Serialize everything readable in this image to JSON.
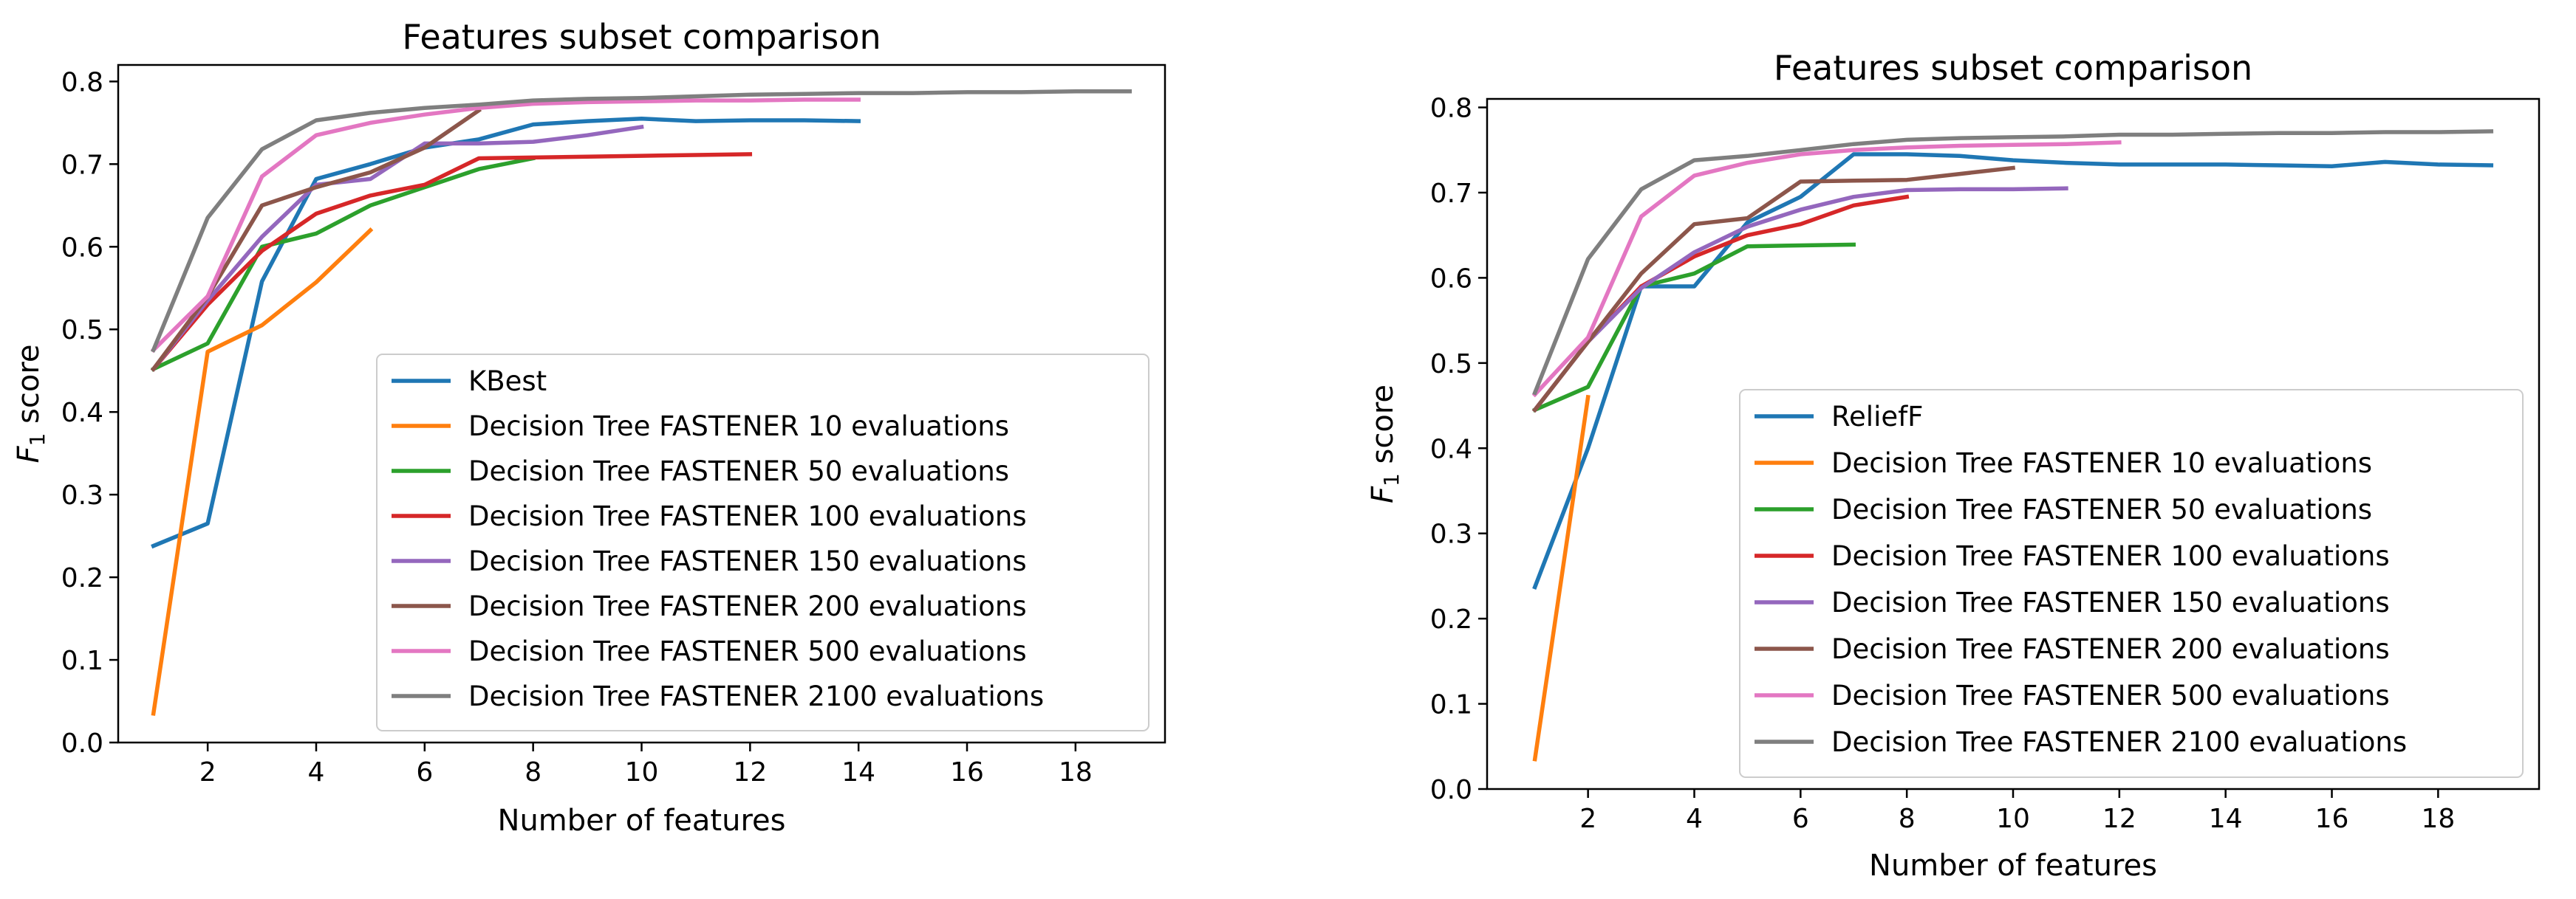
{
  "chart_data": [
    {
      "type": "line",
      "title": "Features subset comparison",
      "xlabel": "Number of features",
      "ylabel_main": "F",
      "ylabel_sub": "1",
      "ylabel_suffix": " score",
      "xlim": [
        0.35,
        19.65
      ],
      "ylim": [
        0.0,
        0.82
      ],
      "xticks": [
        2,
        4,
        6,
        8,
        10,
        12,
        14,
        16,
        18
      ],
      "yticks": [
        0.0,
        0.1,
        0.2,
        0.3,
        0.4,
        0.5,
        0.6,
        0.7,
        0.8
      ],
      "ytick_labels": [
        "0.0",
        "0.1",
        "0.2",
        "0.3",
        "0.4",
        "0.5",
        "0.6",
        "0.7",
        "0.8"
      ],
      "legend_position": "lower-right",
      "series": [
        {
          "name": "KBest",
          "color": "#1f77b4",
          "x": [
            1,
            2,
            3,
            4,
            5,
            6,
            7,
            8,
            9,
            10,
            11,
            12,
            13,
            14
          ],
          "y": [
            0.238,
            0.265,
            0.558,
            0.682,
            0.7,
            0.72,
            0.73,
            0.748,
            0.752,
            0.755,
            0.752,
            0.753,
            0.753,
            0.752
          ]
        },
        {
          "name": "Decision Tree FASTENER 10 evaluations",
          "color": "#ff7f0e",
          "x": [
            1,
            2,
            3,
            4,
            5
          ],
          "y": [
            0.035,
            0.473,
            0.505,
            0.557,
            0.62
          ]
        },
        {
          "name": "Decision Tree FASTENER 50 evaluations",
          "color": "#2ca02c",
          "x": [
            1,
            2,
            3,
            4,
            5,
            6,
            7,
            8
          ],
          "y": [
            0.452,
            0.483,
            0.6,
            0.616,
            0.65,
            0.672,
            0.694,
            0.707
          ]
        },
        {
          "name": "Decision Tree FASTENER 100 evaluations",
          "color": "#d62728",
          "x": [
            1,
            2,
            3,
            4,
            5,
            6,
            7,
            8,
            9,
            10,
            11,
            12
          ],
          "y": [
            0.452,
            0.53,
            0.595,
            0.64,
            0.662,
            0.675,
            0.707,
            0.708,
            0.709,
            0.71,
            0.711,
            0.712
          ]
        },
        {
          "name": "Decision Tree FASTENER 150 evaluations",
          "color": "#9467bd",
          "x": [
            1,
            2,
            3,
            4,
            5,
            6,
            7,
            8,
            9,
            10
          ],
          "y": [
            0.452,
            0.535,
            0.612,
            0.675,
            0.682,
            0.725,
            0.725,
            0.727,
            0.735,
            0.745
          ]
        },
        {
          "name": "Decision Tree FASTENER 200 evaluations",
          "color": "#8c564b",
          "x": [
            1,
            2,
            3,
            4,
            5,
            6,
            7
          ],
          "y": [
            0.452,
            0.54,
            0.65,
            0.672,
            0.69,
            0.72,
            0.765
          ]
        },
        {
          "name": "Decision Tree FASTENER 500 evaluations",
          "color": "#e377c2",
          "x": [
            1,
            2,
            3,
            4,
            5,
            6,
            7,
            8,
            9,
            10,
            11,
            12,
            13,
            14
          ],
          "y": [
            0.475,
            0.54,
            0.685,
            0.735,
            0.75,
            0.76,
            0.768,
            0.773,
            0.775,
            0.776,
            0.777,
            0.777,
            0.778,
            0.778
          ]
        },
        {
          "name": "Decision Tree FASTENER 2100 evaluations",
          "color": "#7f7f7f",
          "x": [
            1,
            2,
            3,
            4,
            5,
            6,
            7,
            8,
            9,
            10,
            11,
            12,
            13,
            14,
            15,
            16,
            17,
            18,
            19
          ],
          "y": [
            0.475,
            0.635,
            0.718,
            0.753,
            0.762,
            0.768,
            0.772,
            0.777,
            0.779,
            0.78,
            0.782,
            0.784,
            0.785,
            0.786,
            0.786,
            0.787,
            0.787,
            0.788,
            0.788
          ]
        }
      ]
    },
    {
      "type": "line",
      "title": "Features subset comparison",
      "xlabel": "Number of features",
      "ylabel_main": "F",
      "ylabel_sub": "1",
      "ylabel_suffix": " score",
      "xlim": [
        0.1,
        19.9
      ],
      "ylim": [
        0.0,
        0.81
      ],
      "xticks": [
        2,
        4,
        6,
        8,
        10,
        12,
        14,
        16,
        18
      ],
      "yticks": [
        0.0,
        0.1,
        0.2,
        0.3,
        0.4,
        0.5,
        0.6,
        0.7,
        0.8
      ],
      "ytick_labels": [
        "0.0",
        "0.1",
        "0.2",
        "0.3",
        "0.4",
        "0.5",
        "0.6",
        "0.7",
        "0.8"
      ],
      "legend_position": "lower-right",
      "series": [
        {
          "name": "ReliefF",
          "color": "#1f77b4",
          "x": [
            1,
            2,
            3,
            4,
            5,
            6,
            7,
            8,
            9,
            10,
            11,
            12,
            13,
            14,
            15,
            16,
            17,
            18,
            19
          ],
          "y": [
            0.237,
            0.4,
            0.59,
            0.59,
            0.665,
            0.695,
            0.745,
            0.745,
            0.743,
            0.738,
            0.735,
            0.733,
            0.733,
            0.733,
            0.732,
            0.731,
            0.736,
            0.733,
            0.732
          ]
        },
        {
          "name": "Decision Tree FASTENER 10 evaluations",
          "color": "#ff7f0e",
          "x": [
            1,
            2
          ],
          "y": [
            0.035,
            0.46
          ]
        },
        {
          "name": "Decision Tree FASTENER 50 evaluations",
          "color": "#2ca02c",
          "x": [
            1,
            2,
            3,
            4,
            5,
            6,
            7
          ],
          "y": [
            0.445,
            0.472,
            0.59,
            0.605,
            0.637,
            0.638,
            0.639
          ]
        },
        {
          "name": "Decision Tree FASTENER 100 evaluations",
          "color": "#d62728",
          "x": [
            1,
            2,
            3,
            4,
            5,
            6,
            7,
            8
          ],
          "y": [
            0.445,
            0.525,
            0.59,
            0.625,
            0.65,
            0.663,
            0.685,
            0.695
          ]
        },
        {
          "name": "Decision Tree FASTENER 150 evaluations",
          "color": "#9467bd",
          "x": [
            1,
            2,
            3,
            4,
            5,
            6,
            7,
            8,
            9,
            10,
            11
          ],
          "y": [
            0.445,
            0.525,
            0.588,
            0.63,
            0.66,
            0.68,
            0.695,
            0.703,
            0.704,
            0.704,
            0.705
          ]
        },
        {
          "name": "Decision Tree FASTENER 200 evaluations",
          "color": "#8c564b",
          "x": [
            1,
            2,
            3,
            4,
            5,
            6,
            7,
            8,
            9,
            10
          ],
          "y": [
            0.445,
            0.525,
            0.605,
            0.663,
            0.67,
            0.713,
            0.714,
            0.715,
            0.722,
            0.729
          ]
        },
        {
          "name": "Decision Tree FASTENER 500 evaluations",
          "color": "#e377c2",
          "x": [
            1,
            2,
            3,
            4,
            5,
            6,
            7,
            8,
            9,
            10,
            11,
            12
          ],
          "y": [
            0.463,
            0.53,
            0.672,
            0.72,
            0.735,
            0.745,
            0.75,
            0.753,
            0.755,
            0.756,
            0.757,
            0.759
          ]
        },
        {
          "name": "Decision Tree FASTENER 2100 evaluations",
          "color": "#7f7f7f",
          "x": [
            1,
            2,
            3,
            4,
            5,
            6,
            7,
            8,
            9,
            10,
            11,
            12,
            13,
            14,
            15,
            16,
            17,
            18,
            19
          ],
          "y": [
            0.465,
            0.622,
            0.704,
            0.738,
            0.743,
            0.75,
            0.757,
            0.762,
            0.764,
            0.765,
            0.766,
            0.768,
            0.768,
            0.769,
            0.77,
            0.77,
            0.771,
            0.771,
            0.772
          ]
        }
      ]
    }
  ]
}
